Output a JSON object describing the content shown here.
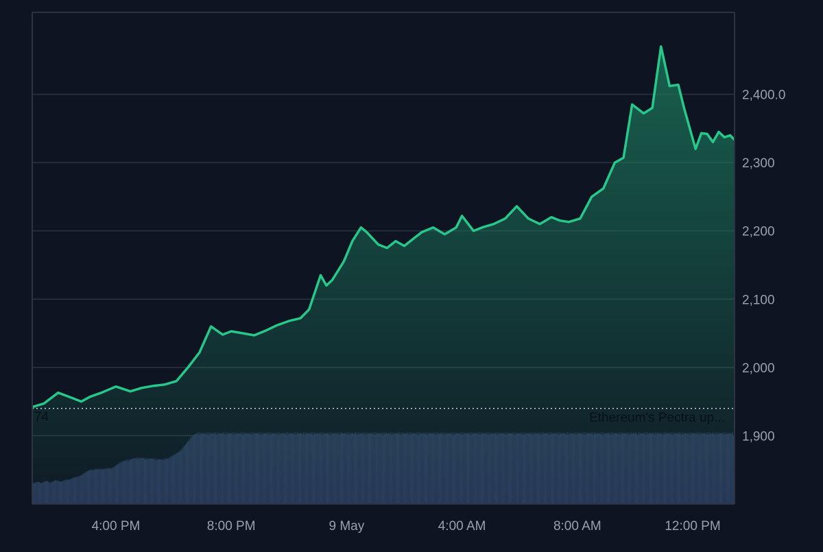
{
  "colors": {
    "background": "#0e1422",
    "line": "#26c98a",
    "area_top": "#1c7a5c",
    "grid": "#2c3443",
    "volume": "#2d3a5e",
    "axis_text": "#9aa1ad",
    "reference_line": "#d0d4da"
  },
  "annotations": {
    "reference_value_label": "74",
    "news_label": "Ethereum's Pectra up..."
  },
  "chart_data": {
    "type": "area",
    "title": "",
    "xlabel": "",
    "ylabel": "",
    "ylim": [
      1800,
      2520
    ],
    "y_ticks": [
      1900,
      2000,
      2100,
      2200,
      2300,
      2400
    ],
    "y_tick_labels": [
      "1,900",
      "2,000",
      "2,100",
      "2,200",
      "2,300",
      "2,400.0"
    ],
    "x_ticks": [
      2.5,
      6.5,
      10.5,
      14.5,
      18.5,
      22.5
    ],
    "x_tick_labels": [
      "4:00 PM",
      "8:00 PM",
      "9 May",
      "4:00 AM",
      "8:00 AM",
      "12:00 PM"
    ],
    "x_range": [
      -0.4,
      23.95
    ],
    "x_unit": "hours after 1:30 PM, 8 May",
    "reference_line": 1940,
    "grid": true,
    "series": [
      {
        "style": "line-area",
        "x": [
          -0.4,
          0.0,
          0.5,
          1.0,
          1.3,
          1.6,
          2.0,
          2.5,
          3.0,
          3.4,
          3.8,
          4.2,
          4.6,
          5.0,
          5.4,
          5.8,
          6.2,
          6.5,
          6.9,
          7.3,
          7.7,
          8.1,
          8.5,
          8.9,
          9.2,
          9.6,
          9.8,
          10.0,
          10.4,
          10.7,
          11.0,
          11.2,
          11.6,
          11.9,
          12.2,
          12.5,
          12.8,
          13.1,
          13.5,
          13.9,
          14.3,
          14.5,
          14.9,
          15.2,
          15.6,
          16.0,
          16.4,
          16.8,
          17.2,
          17.6,
          17.9,
          18.2,
          18.6,
          19.0,
          19.4,
          19.8,
          20.1,
          20.4,
          20.8,
          21.1,
          21.4,
          21.7,
          22.0,
          22.2,
          22.4,
          22.6,
          22.8,
          23.0,
          23.2,
          23.4,
          23.6,
          23.8,
          23.95
        ],
        "y": [
          1942,
          1947,
          1963,
          1955,
          1950,
          1957,
          1963,
          1972,
          1965,
          1970,
          1973,
          1975,
          1980,
          2000,
          2022,
          2060,
          2048,
          2053,
          2050,
          2047,
          2054,
          2062,
          2068,
          2072,
          2085,
          2135,
          2120,
          2128,
          2155,
          2185,
          2205,
          2198,
          2180,
          2175,
          2185,
          2178,
          2188,
          2198,
          2205,
          2195,
          2205,
          2222,
          2200,
          2205,
          2210,
          2218,
          2236,
          2218,
          2210,
          2220,
          2215,
          2213,
          2218,
          2250,
          2262,
          2300,
          2307,
          2385,
          2372,
          2380,
          2470,
          2412,
          2414,
          2380,
          2350,
          2320,
          2343,
          2342,
          2330,
          2345,
          2337,
          2340,
          2333
        ]
      },
      {
        "style": "volume-bars",
        "note": "relative volume level, 0 to 1",
        "start_x": -0.4,
        "step": 0.1,
        "values": [
          0.28,
          0.29,
          0.3,
          0.28,
          0.3,
          0.31,
          0.29,
          0.3,
          0.32,
          0.31,
          0.3,
          0.32,
          0.33,
          0.33,
          0.35,
          0.36,
          0.37,
          0.39,
          0.42,
          0.44,
          0.46,
          0.46,
          0.47,
          0.47,
          0.47,
          0.47,
          0.48,
          0.48,
          0.49,
          0.52,
          0.55,
          0.57,
          0.58,
          0.59,
          0.6,
          0.61,
          0.62,
          0.62,
          0.62,
          0.61,
          0.61,
          0.61,
          0.61,
          0.6,
          0.6,
          0.6,
          0.61,
          0.61,
          0.64,
          0.66,
          0.68,
          0.71,
          0.75,
          0.8,
          0.85,
          0.9,
          0.93,
          0.95
        ]
      }
    ]
  }
}
